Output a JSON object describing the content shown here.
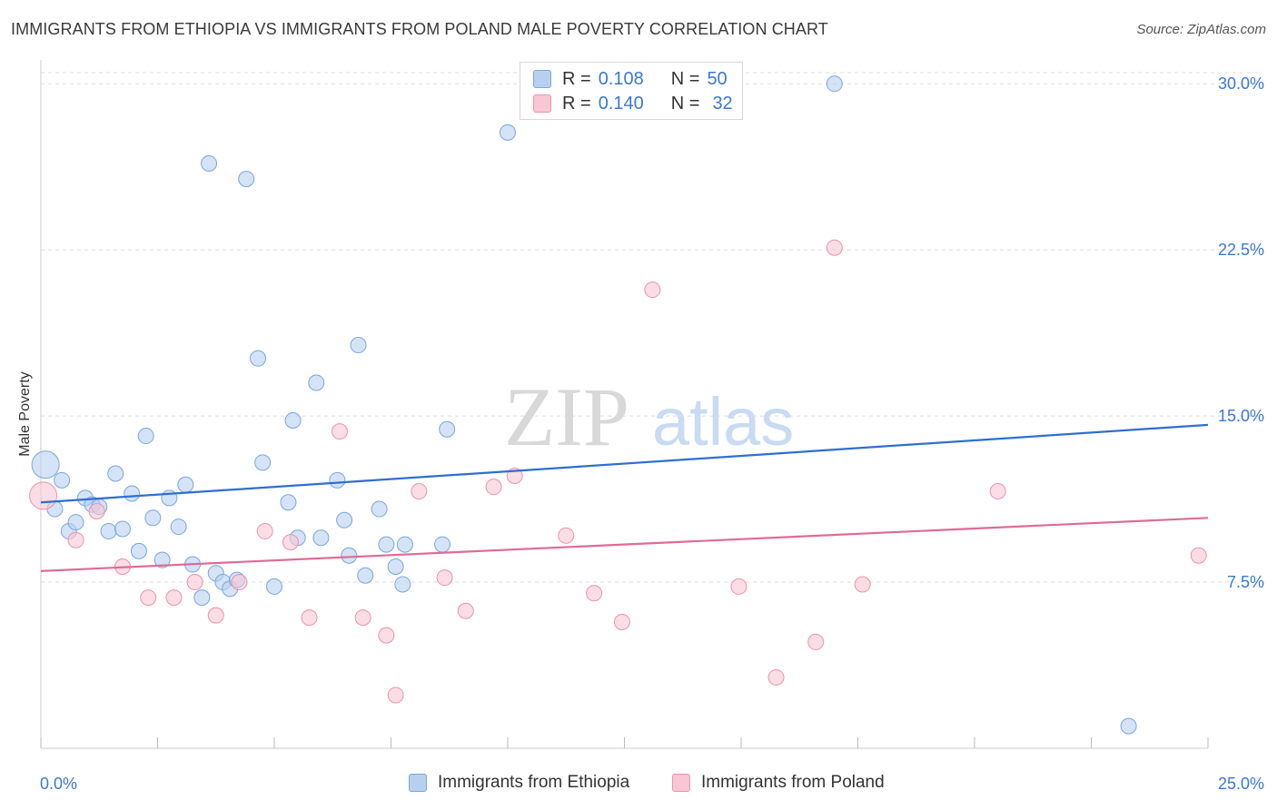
{
  "title": "IMMIGRANTS FROM ETHIOPIA VS IMMIGRANTS FROM POLAND MALE POVERTY CORRELATION CHART",
  "source": "Source: ZipAtlas.com",
  "watermark": {
    "zip": "ZIP",
    "atlas": "atlas"
  },
  "legend": {
    "ethiopia": {
      "r_label": "R = ",
      "r_value": "0.108",
      "n_label": "N = ",
      "n_value": "50"
    },
    "poland": {
      "r_label": "R = ",
      "r_value": "0.140",
      "n_label": "N = ",
      "n_value": "32"
    }
  },
  "colors": {
    "ethiopia_fill": "#b8d0f0",
    "ethiopia_stroke": "#7aa6e0",
    "ethiopia_line": "#2f6fcf",
    "poland_fill": "#f8c6d4",
    "poland_stroke": "#ec93ad",
    "poland_line": "#e06b96",
    "axis_label": "#3b78d2",
    "grid": "#dddddd"
  },
  "chart_data": {
    "type": "scatter",
    "title": "IMMIGRANTS FROM ETHIOPIA VS IMMIGRANTS FROM POLAND MALE POVERTY CORRELATION CHART",
    "xlabel": "",
    "ylabel": "Male Poverty",
    "xlim": [
      0,
      25
    ],
    "ylim": [
      0,
      30.5
    ],
    "x_tick_labels": [
      "0.0%",
      "25.0%"
    ],
    "y_ticks": [
      7.5,
      15.0,
      22.5,
      30.0
    ],
    "y_tick_labels": [
      "7.5%",
      "15.0%",
      "22.5%",
      "30.0%"
    ],
    "grid": true,
    "series": [
      {
        "name": "Immigrants from Ethiopia",
        "trend": {
          "x": [
            0,
            25
          ],
          "y": [
            11.1,
            14.6
          ]
        },
        "points": [
          {
            "x": 0.1,
            "y": 12.8,
            "big": true
          },
          {
            "x": 0.3,
            "y": 10.8
          },
          {
            "x": 0.45,
            "y": 12.1
          },
          {
            "x": 0.6,
            "y": 9.8
          },
          {
            "x": 0.75,
            "y": 10.2
          },
          {
            "x": 0.95,
            "y": 11.3
          },
          {
            "x": 1.1,
            "y": 11.0
          },
          {
            "x": 1.25,
            "y": 10.9
          },
          {
            "x": 1.45,
            "y": 9.8
          },
          {
            "x": 1.6,
            "y": 12.4
          },
          {
            "x": 1.75,
            "y": 9.9
          },
          {
            "x": 1.95,
            "y": 11.5
          },
          {
            "x": 2.1,
            "y": 8.9
          },
          {
            "x": 2.25,
            "y": 14.1
          },
          {
            "x": 2.4,
            "y": 10.4
          },
          {
            "x": 2.6,
            "y": 8.5
          },
          {
            "x": 2.75,
            "y": 11.3
          },
          {
            "x": 2.95,
            "y": 10.0
          },
          {
            "x": 3.1,
            "y": 11.9
          },
          {
            "x": 3.25,
            "y": 8.3
          },
          {
            "x": 3.45,
            "y": 6.8
          },
          {
            "x": 3.6,
            "y": 26.4
          },
          {
            "x": 3.75,
            "y": 7.9
          },
          {
            "x": 3.9,
            "y": 7.5
          },
          {
            "x": 4.05,
            "y": 7.2
          },
          {
            "x": 4.2,
            "y": 7.6
          },
          {
            "x": 4.4,
            "y": 25.7
          },
          {
            "x": 4.65,
            "y": 17.6
          },
          {
            "x": 4.75,
            "y": 12.9
          },
          {
            "x": 5.0,
            "y": 7.3
          },
          {
            "x": 5.3,
            "y": 11.1
          },
          {
            "x": 5.4,
            "y": 14.8
          },
          {
            "x": 5.5,
            "y": 9.5
          },
          {
            "x": 5.9,
            "y": 16.5
          },
          {
            "x": 6.0,
            "y": 9.5
          },
          {
            "x": 6.35,
            "y": 12.1
          },
          {
            "x": 6.5,
            "y": 10.3
          },
          {
            "x": 6.6,
            "y": 8.7
          },
          {
            "x": 6.8,
            "y": 18.2
          },
          {
            "x": 6.95,
            "y": 7.8
          },
          {
            "x": 7.25,
            "y": 10.8
          },
          {
            "x": 7.4,
            "y": 9.2
          },
          {
            "x": 7.6,
            "y": 8.2
          },
          {
            "x": 7.75,
            "y": 7.4
          },
          {
            "x": 7.8,
            "y": 9.2
          },
          {
            "x": 8.6,
            "y": 9.2
          },
          {
            "x": 8.7,
            "y": 14.4
          },
          {
            "x": 10.0,
            "y": 27.8
          },
          {
            "x": 17.0,
            "y": 30.0
          },
          {
            "x": 23.3,
            "y": 1.0
          }
        ]
      },
      {
        "name": "Immigrants from Poland",
        "trend": {
          "x": [
            0,
            25
          ],
          "y": [
            8.0,
            10.4
          ]
        },
        "points": [
          {
            "x": 0.05,
            "y": 11.4,
            "big": true
          },
          {
            "x": 0.75,
            "y": 9.4
          },
          {
            "x": 1.2,
            "y": 10.7
          },
          {
            "x": 1.75,
            "y": 8.2
          },
          {
            "x": 2.3,
            "y": 6.8
          },
          {
            "x": 2.85,
            "y": 6.8
          },
          {
            "x": 3.3,
            "y": 7.5
          },
          {
            "x": 3.75,
            "y": 6.0
          },
          {
            "x": 4.25,
            "y": 7.5
          },
          {
            "x": 4.8,
            "y": 9.8
          },
          {
            "x": 5.35,
            "y": 9.3
          },
          {
            "x": 5.75,
            "y": 5.9
          },
          {
            "x": 6.4,
            "y": 14.3
          },
          {
            "x": 6.9,
            "y": 5.9
          },
          {
            "x": 7.4,
            "y": 5.1
          },
          {
            "x": 7.6,
            "y": 2.4
          },
          {
            "x": 8.1,
            "y": 11.6
          },
          {
            "x": 8.65,
            "y": 7.7
          },
          {
            "x": 9.1,
            "y": 6.2
          },
          {
            "x": 9.7,
            "y": 11.8
          },
          {
            "x": 10.15,
            "y": 12.3
          },
          {
            "x": 11.25,
            "y": 9.6
          },
          {
            "x": 11.85,
            "y": 7.0
          },
          {
            "x": 12.45,
            "y": 5.7
          },
          {
            "x": 13.1,
            "y": 20.7
          },
          {
            "x": 14.95,
            "y": 7.3
          },
          {
            "x": 15.75,
            "y": 3.2
          },
          {
            "x": 16.6,
            "y": 4.8
          },
          {
            "x": 17.0,
            "y": 22.6
          },
          {
            "x": 17.6,
            "y": 7.4
          },
          {
            "x": 20.5,
            "y": 11.6
          },
          {
            "x": 24.8,
            "y": 8.7
          }
        ]
      }
    ]
  }
}
